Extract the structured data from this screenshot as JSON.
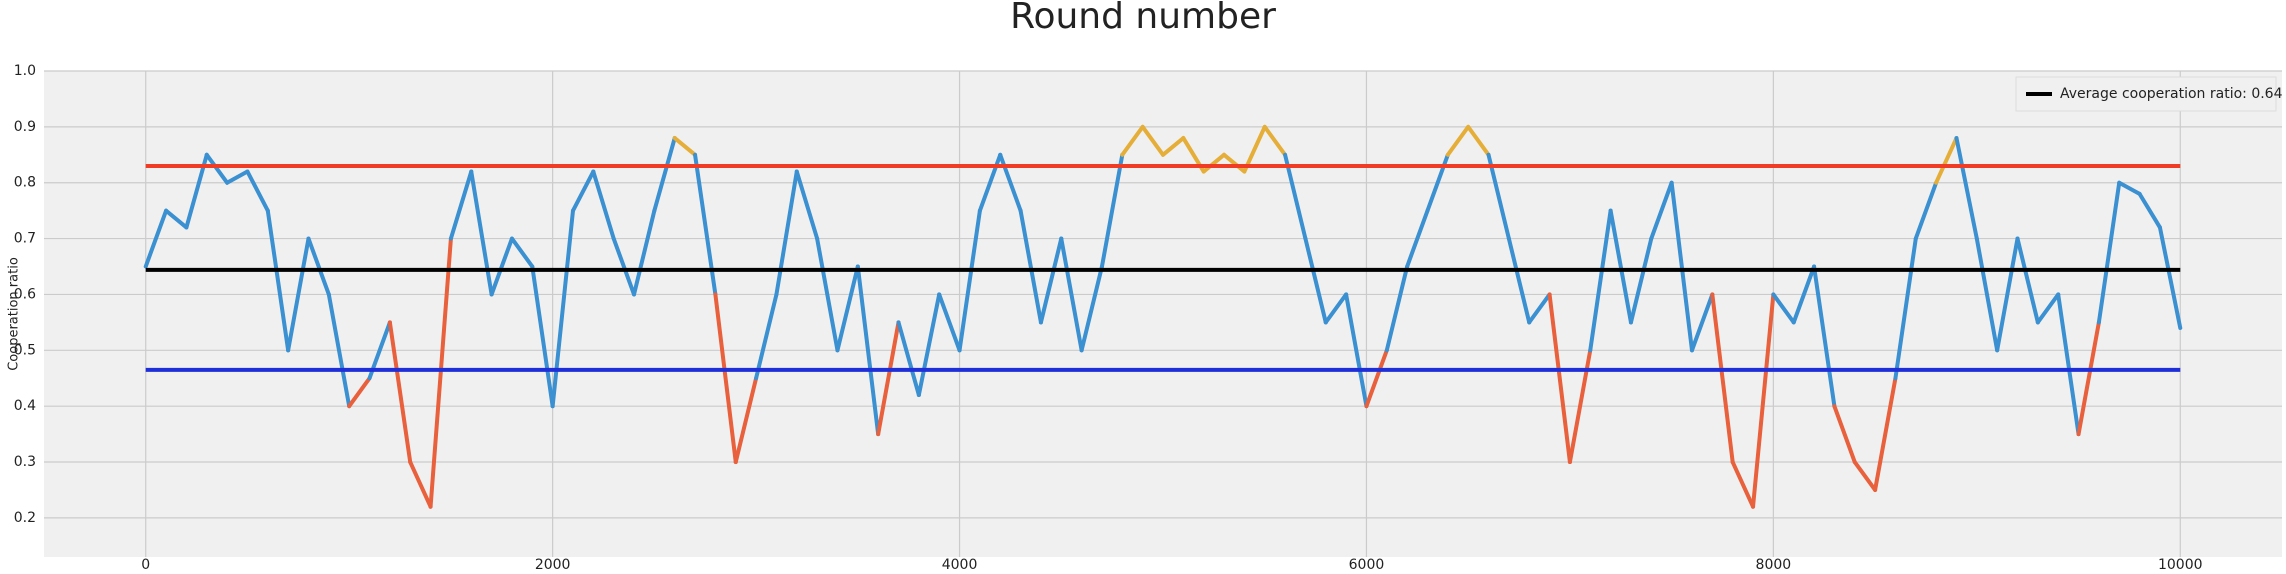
{
  "chart_data": {
    "type": "line",
    "title": "Round number",
    "y_label": "Cooperation ratio",
    "x": [
      0,
      100,
      200,
      300,
      400,
      500,
      600,
      700,
      800,
      900,
      1000,
      1100,
      1200,
      1300,
      1400,
      1500,
      1600,
      1700,
      1800,
      1900,
      2000,
      2100,
      2200,
      2300,
      2400,
      2500,
      2600,
      2700,
      2800,
      2900,
      3000,
      3100,
      3200,
      3300,
      3400,
      3500,
      3600,
      3700,
      3800,
      3900,
      4000,
      4100,
      4200,
      4300,
      4400,
      4500,
      4600,
      4700,
      4800,
      4900,
      5000,
      5100,
      5200,
      5300,
      5400,
      5500,
      5600,
      5700,
      5800,
      5900,
      6000,
      6100,
      6200,
      6300,
      6400,
      6500,
      6600,
      6700,
      6800,
      6900,
      7000,
      7100,
      7200,
      7300,
      7400,
      7500,
      7600,
      7700,
      7800,
      7900,
      8000,
      8100,
      8200,
      8300,
      8400,
      8500,
      8600,
      8700,
      8800,
      8900,
      9000,
      9100,
      9200,
      9300,
      9400,
      9500,
      9600,
      9700,
      9800,
      9900,
      10000
    ],
    "series": [
      {
        "values": [
          0.65,
          0.75,
          0.72,
          0.85,
          0.8,
          0.82,
          0.75,
          0.5,
          0.7,
          0.6,
          0.4,
          0.45,
          0.55,
          0.3,
          0.22,
          0.7,
          0.82,
          0.6,
          0.7,
          0.65,
          0.4,
          0.75,
          0.82,
          0.7,
          0.6,
          0.75,
          0.88,
          0.85,
          0.6,
          0.3,
          0.45,
          0.6,
          0.82,
          0.7,
          0.5,
          0.65,
          0.35,
          0.55,
          0.42,
          0.6,
          0.5,
          0.75,
          0.85,
          0.75,
          0.55,
          0.7,
          0.5,
          0.65,
          0.85,
          0.9,
          0.85,
          0.88,
          0.82,
          0.85,
          0.82,
          0.9,
          0.85,
          0.7,
          0.55,
          0.6,
          0.4,
          0.5,
          0.65,
          0.75,
          0.85,
          0.9,
          0.85,
          0.7,
          0.55,
          0.6,
          0.3,
          0.5,
          0.75,
          0.55,
          0.7,
          0.8,
          0.5,
          0.6,
          0.3,
          0.22,
          0.6,
          0.55,
          0.65,
          0.4,
          0.3,
          0.25,
          0.45,
          0.7,
          0.8,
          0.88,
          0.7,
          0.5,
          0.7,
          0.55,
          0.6,
          0.35,
          0.55,
          0.8,
          0.78,
          0.72,
          0.54
        ],
        "colors": {
          "above": "#e5ae38",
          "between": "#3a90d0",
          "below": "#e8603c"
        }
      }
    ],
    "hlines": [
      {
        "value": 0.83,
        "color": "#f03c24"
      },
      {
        "value": 0.644,
        "color": "#000000",
        "name": "Average cooperation ratio: 0.64"
      },
      {
        "value": 0.465,
        "color": "#1f2fd8"
      }
    ],
    "xlim": [
      -500,
      10500
    ],
    "xticks": [
      0,
      2000,
      4000,
      6000,
      8000,
      10000
    ],
    "ylim": [
      0.13,
      1.0
    ],
    "yticks": [
      0.2,
      0.3,
      0.4,
      0.5,
      0.6,
      0.7,
      0.8,
      0.9,
      {
        "value": 1.0,
        "label": "1.0"
      }
    ],
    "grid": true,
    "legend": "upper right"
  }
}
